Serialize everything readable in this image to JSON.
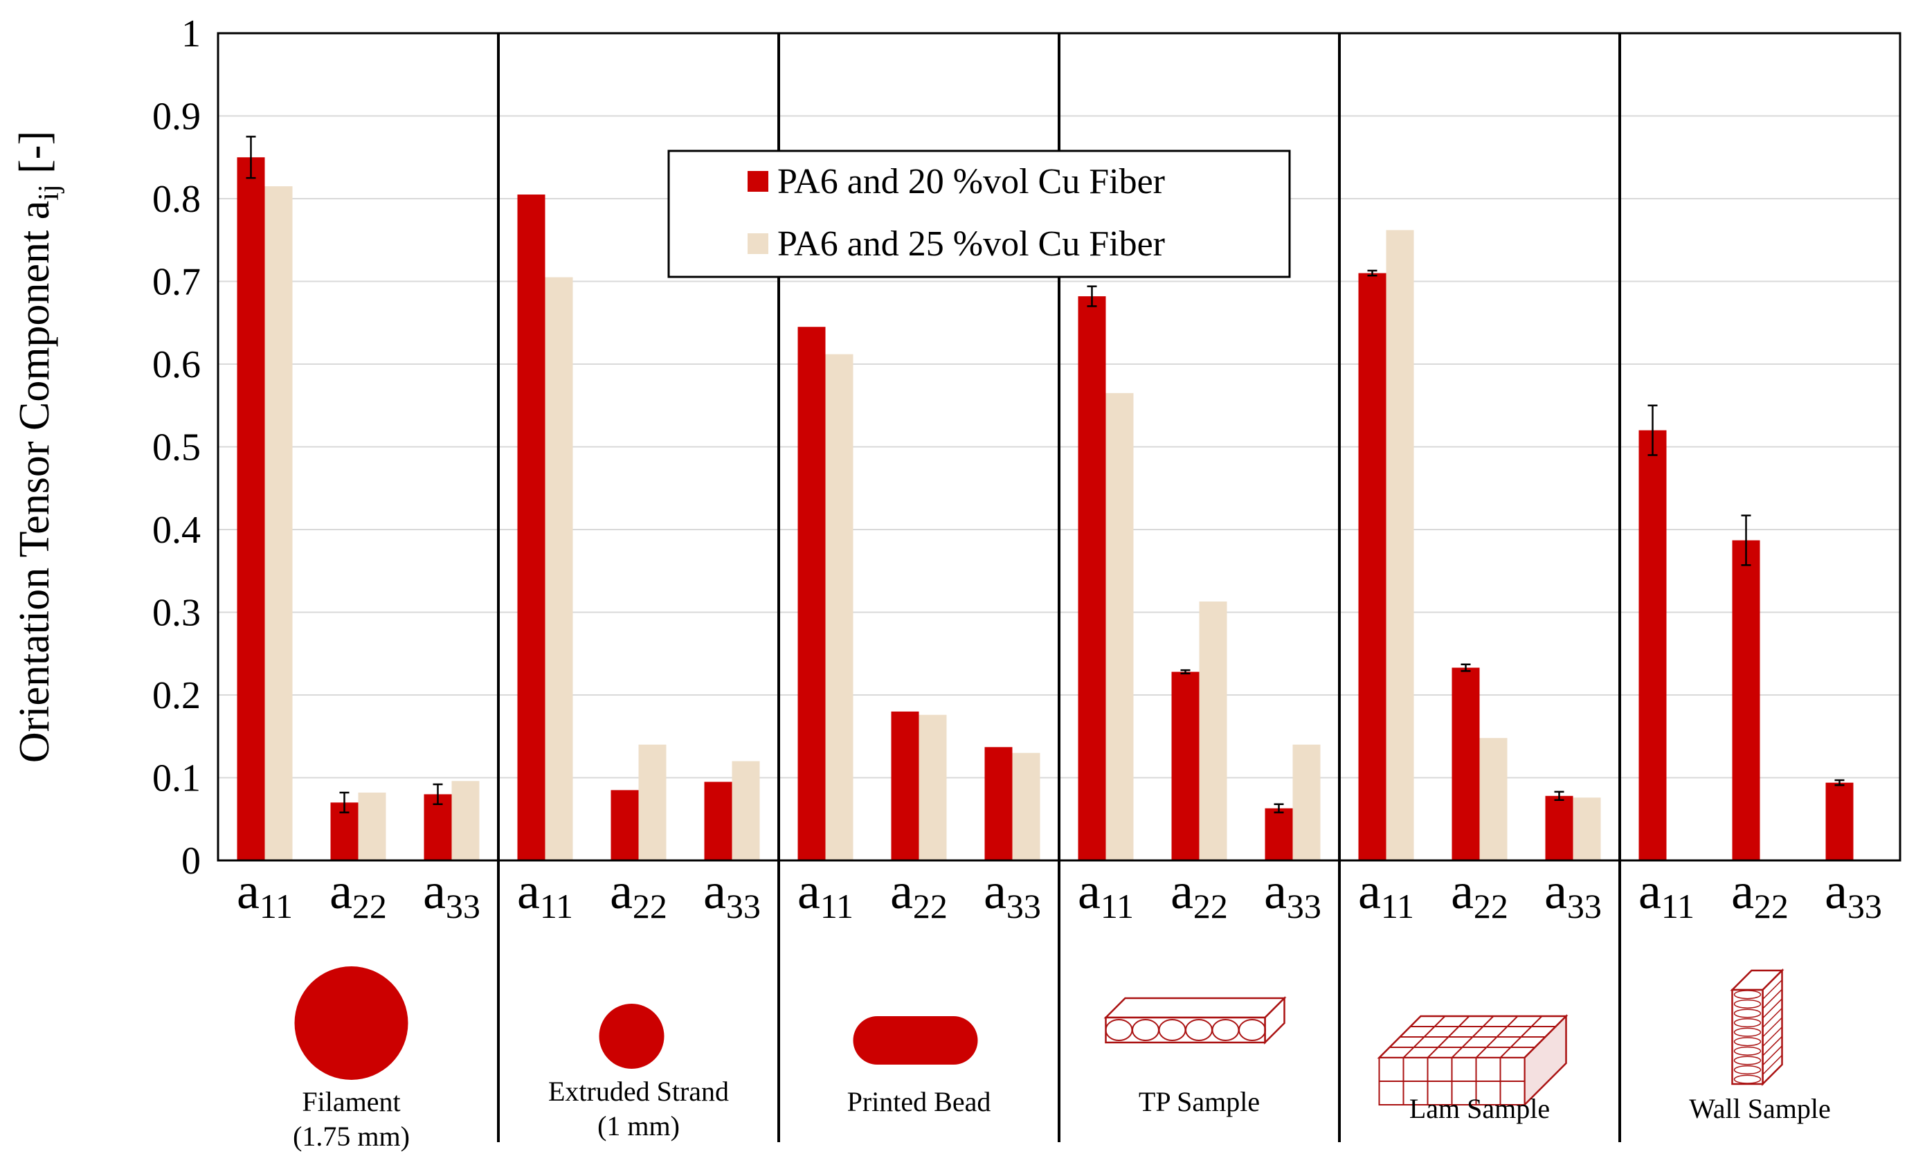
{
  "chart_data": {
    "type": "bar",
    "ylabel": "Orientation Tensor Component a",
    "ylabel_sub": "ij",
    "ylabel_suffix": " [-]",
    "ylim": [
      0,
      1
    ],
    "yticks": [
      "0",
      "0.1",
      "0.2",
      "0.3",
      "0.4",
      "0.5",
      "0.6",
      "0.7",
      "0.8",
      "0.9",
      "1"
    ],
    "grid": true,
    "legend_position": "top-center",
    "components": [
      {
        "base": "a",
        "sub": "11"
      },
      {
        "base": "a",
        "sub": "22"
      },
      {
        "base": "a",
        "sub": "33"
      }
    ],
    "groups": [
      {
        "label": "Filament",
        "label2": "(1.75 mm)",
        "icon": "large-circle-icon"
      },
      {
        "label": "Extruded Strand",
        "label2": "(1 mm)",
        "icon": "small-circle-icon"
      },
      {
        "label": "Printed Bead",
        "label2": "",
        "icon": "bead-icon"
      },
      {
        "label": "TP Sample",
        "label2": "",
        "icon": "tp-sample-icon"
      },
      {
        "label": "Lam Sample",
        "label2": "",
        "icon": "lam-sample-icon"
      },
      {
        "label": "Wall Sample",
        "label2": "",
        "icon": "wall-sample-icon"
      }
    ],
    "series": [
      {
        "name": "PA6 and 20 %vol Cu Fiber",
        "color": "#cc0000",
        "values": [
          [
            0.85,
            0.07,
            0.08
          ],
          [
            0.805,
            0.085,
            0.095
          ],
          [
            0.645,
            0.18,
            0.137
          ],
          [
            0.682,
            0.228,
            0.063
          ],
          [
            0.71,
            0.233,
            0.078
          ],
          [
            0.52,
            0.387,
            0.094
          ]
        ],
        "errors": [
          [
            0.025,
            0.012,
            0.012
          ],
          [
            0,
            0,
            0
          ],
          [
            0,
            0,
            0
          ],
          [
            0.012,
            0.002,
            0.005
          ],
          [
            0.003,
            0.004,
            0.005
          ],
          [
            0.03,
            0.03,
            0.003
          ]
        ]
      },
      {
        "name": "PA6 and 25 %vol Cu Fiber",
        "color": "#eedec8",
        "values": [
          [
            0.815,
            0.082,
            0.096
          ],
          [
            0.705,
            0.14,
            0.12
          ],
          [
            0.612,
            0.176,
            0.13
          ],
          [
            0.565,
            0.313,
            0.14
          ],
          [
            0.762,
            0.148,
            0.076
          ],
          [
            null,
            null,
            null
          ]
        ],
        "errors": [
          [
            0,
            0,
            0
          ],
          [
            0,
            0,
            0
          ],
          [
            0,
            0,
            0
          ],
          [
            0,
            0,
            0
          ],
          [
            0,
            0,
            0
          ],
          [
            0,
            0,
            0
          ]
        ]
      }
    ]
  }
}
